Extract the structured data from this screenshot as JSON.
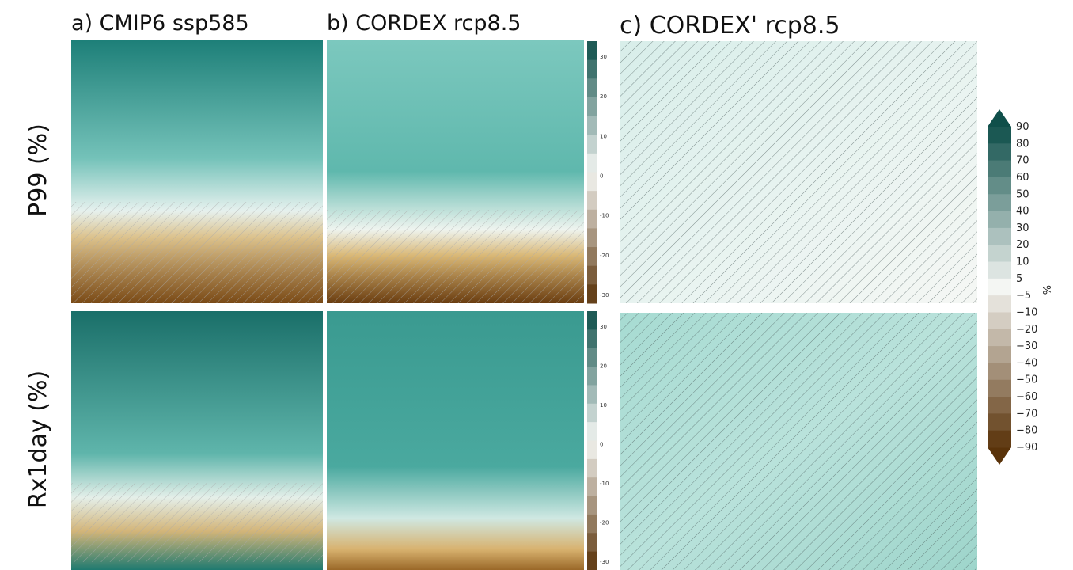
{
  "panels": [
    {
      "title": "a) CMIP6 ssp585"
    },
    {
      "title": "b) CORDEX rcp8.5"
    },
    {
      "title": "c) CORDEX' rcp8.5"
    }
  ],
  "rows": [
    "P99 (%)",
    "Rx1day (%)"
  ],
  "small_colorbar": {
    "labels": [
      "30",
      "20",
      "10",
      "0",
      "-10",
      "-20",
      "-30"
    ]
  },
  "colorbar": {
    "labels": [
      "90",
      "80",
      "70",
      "60",
      "50",
      "40",
      "30",
      "20",
      "10",
      "5",
      "−5",
      "−10",
      "−20",
      "−30",
      "−40",
      "−50",
      "−60",
      "−70",
      "−80",
      "−90"
    ],
    "unit": "%"
  }
}
